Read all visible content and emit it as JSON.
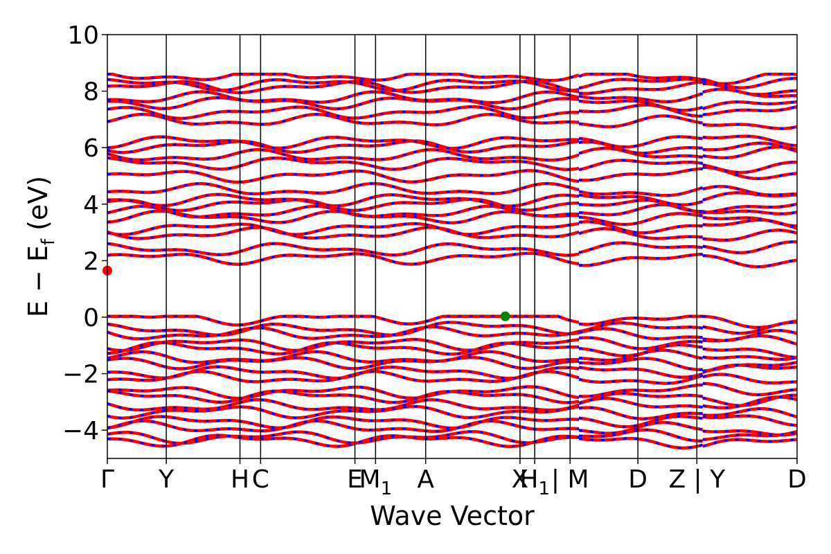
{
  "chart_data": {
    "type": "line",
    "title": "",
    "xlabel": "Wave Vector",
    "ylabel": "E − E",
    "ylabel_subscript": "f",
    "ylabel_unit": " (eV)",
    "ylim": [
      -5,
      10
    ],
    "yticks": [
      {
        "value": -4,
        "label": "−4"
      },
      {
        "value": -2,
        "label": "−2"
      },
      {
        "value": 0,
        "label": "0"
      },
      {
        "value": 2,
        "label": "2"
      },
      {
        "value": 4,
        "label": "4"
      },
      {
        "value": 6,
        "label": "6"
      },
      {
        "value": 8,
        "label": "8"
      },
      {
        "value": 10,
        "label": "10"
      }
    ],
    "xlim": [
      0,
      11.7
    ],
    "kpoints": [
      {
        "x": 0.0,
        "label": "Γ"
      },
      {
        "x": 1.0,
        "label": "Y"
      },
      {
        "x": 2.25,
        "label": "H"
      },
      {
        "x": 2.6,
        "label": "C"
      },
      {
        "x": 4.2,
        "label": "E"
      },
      {
        "x": 4.55,
        "label": "M",
        "sub": "1"
      },
      {
        "x": 5.4,
        "label": "A"
      },
      {
        "x": 7.0,
        "label": "X"
      },
      {
        "x": 7.25,
        "label": "H",
        "sub": "1"
      },
      {
        "x": 7.85,
        "label": "| M"
      },
      {
        "x": 9.0,
        "label": "D"
      },
      {
        "x": 10.0,
        "label": "Z | Y"
      },
      {
        "x": 11.7,
        "label": "D"
      }
    ],
    "segment_breaks": [
      8.0,
      10.1
    ],
    "band_colors": {
      "line": "#ff0000",
      "dash": "#0000ff"
    },
    "cbm_point": {
      "x": 0.0,
      "y": 1.65,
      "color": "#ff0000"
    },
    "vbm_point": {
      "x": 6.75,
      "y": 0.03,
      "color": "#008000"
    },
    "conduction_bands": [
      2.05,
      2.45,
      2.9,
      3.2,
      3.5,
      3.75,
      3.95,
      4.2,
      4.45,
      5.05,
      5.4,
      5.75,
      6.0,
      6.25,
      6.9,
      7.3,
      7.55,
      7.8,
      8.1,
      8.3,
      8.5
    ],
    "valence_bands": [
      -0.1,
      -0.4,
      -0.65,
      -0.9,
      -1.15,
      -1.4,
      -1.65,
      -1.9,
      -2.2,
      -2.6,
      -2.85,
      -3.1,
      -3.4,
      -3.65,
      -3.95,
      -4.2,
      -4.4
    ]
  }
}
